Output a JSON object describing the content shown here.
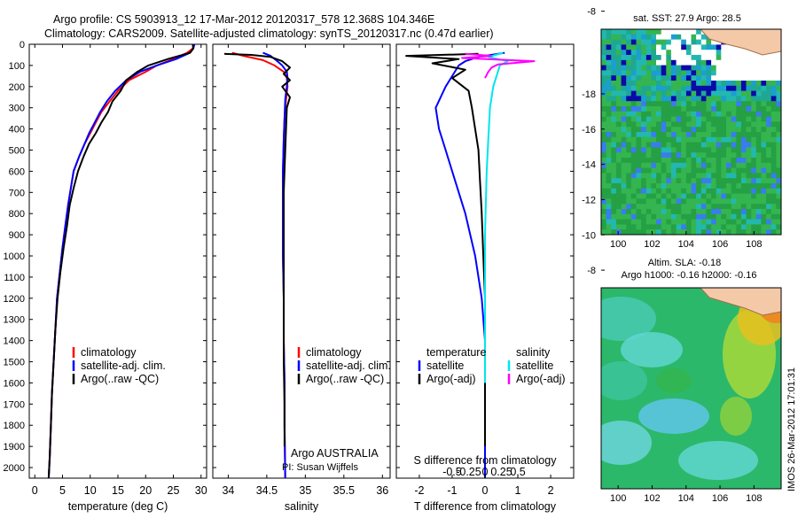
{
  "header": {
    "line1": "Argo profile: CS 5903913_12 17-Mar-2012 20120317_578 12.368S 104.346E",
    "line2": "Climatology: CARS2009. Satellite-adjusted climatology: synTS_20120317.nc (0.47d earlier)"
  },
  "colors": {
    "climatology": "#ff0000",
    "satellite": "#0000ff",
    "argo": "#000000",
    "sal_satellite": "#00e5ee",
    "sal_argo": "#ff00ff"
  },
  "depth_axis": {
    "ticks": [
      "0",
      "100",
      "200",
      "300",
      "400",
      "500",
      "600",
      "700",
      "800",
      "900",
      "1000",
      "1100",
      "1200",
      "1300",
      "1400",
      "1500",
      "1600",
      "1700",
      "1800",
      "1900",
      "2000"
    ]
  },
  "chart_data": [
    {
      "type": "line",
      "xlabel": "temperature (deg C)",
      "xlim": [
        -1,
        31
      ],
      "ylim": [
        0,
        2050
      ],
      "y_inverted": true,
      "xticks": [
        "0",
        "5",
        "10",
        "15",
        "20",
        "25",
        "30"
      ],
      "legend": [
        "climatology",
        "satellite-adj. clim.",
        "Argo(..raw -QC)"
      ],
      "series": [
        {
          "name": "climatology",
          "x": [
            28.8,
            28.5,
            27.5,
            25,
            22,
            20,
            17,
            15,
            13.5,
            12,
            11,
            10,
            9,
            8,
            7,
            6.5,
            6,
            5.5,
            5,
            4.5,
            4,
            3.7,
            3.4,
            3.1,
            2.9,
            2.7,
            2.5
          ],
          "y": [
            0,
            20,
            40,
            70,
            100,
            130,
            170,
            220,
            270,
            320,
            370,
            420,
            470,
            530,
            600,
            680,
            760,
            860,
            960,
            1080,
            1200,
            1350,
            1500,
            1650,
            1800,
            1950,
            2050
          ]
        },
        {
          "name": "satellite-adj. clim.",
          "x": [
            28.8,
            28.6,
            28,
            25.5,
            22,
            19,
            16.5,
            14.5,
            13,
            11.8,
            10.8,
            9.8,
            9,
            8,
            7,
            6.5,
            6,
            5.5,
            5,
            4.5,
            4,
            3.7,
            3.4,
            3.1,
            2.9,
            2.7,
            2.5
          ],
          "y": [
            0,
            20,
            40,
            70,
            100,
            130,
            170,
            220,
            270,
            320,
            370,
            420,
            470,
            530,
            600,
            680,
            760,
            860,
            960,
            1080,
            1200,
            1350,
            1500,
            1650,
            1800,
            1950,
            2050
          ]
        },
        {
          "name": "Argo(..raw -QC)",
          "x": [
            28.5,
            28.6,
            28,
            24,
            20.5,
            18.5,
            16.5,
            15.5,
            14,
            13.2,
            12,
            11,
            9.8,
            8.8,
            7.8,
            7,
            6.3,
            5.8,
            5.2,
            4.6,
            4.1,
            3.7,
            3.4,
            3.1,
            2.9,
            2.7,
            2.5
          ],
          "y": [
            0,
            20,
            40,
            70,
            100,
            130,
            170,
            220,
            270,
            320,
            370,
            420,
            470,
            530,
            600,
            680,
            760,
            860,
            960,
            1080,
            1200,
            1350,
            1500,
            1650,
            1800,
            1950,
            2050
          ]
        }
      ]
    },
    {
      "type": "line",
      "xlabel": "salinity",
      "xlim": [
        33.8,
        36.1
      ],
      "ylim": [
        0,
        2050
      ],
      "y_inverted": true,
      "xticks": [
        "34",
        "34.5",
        "35",
        "35.5",
        "36"
      ],
      "legend": [
        "climatology",
        "satellite-adj. clim.",
        "Argo(..raw -QC)"
      ],
      "annotations": [
        "Argo AUSTRALIA",
        "PI: Susan Wijffels"
      ],
      "series": [
        {
          "name": "climatology",
          "x": [
            34.05,
            34.2,
            34.45,
            34.6,
            34.72,
            34.76,
            34.77,
            34.75,
            34.73,
            34.72,
            34.71,
            34.71,
            34.71,
            34.72,
            34.72,
            34.73,
            34.73,
            34.74
          ],
          "y": [
            40,
            55,
            75,
            100,
            130,
            160,
            200,
            260,
            350,
            450,
            600,
            800,
            1000,
            1200,
            1400,
            1600,
            1800,
            2050
          ]
        },
        {
          "name": "satellite-adj. clim.",
          "x": [
            34.45,
            34.55,
            34.62,
            34.7,
            34.76,
            34.77,
            34.76,
            34.74,
            34.73,
            34.72,
            34.71,
            34.71,
            34.71,
            34.72,
            34.72,
            34.73,
            34.73,
            34.74
          ],
          "y": [
            40,
            55,
            75,
            100,
            130,
            160,
            200,
            260,
            350,
            450,
            600,
            800,
            1000,
            1200,
            1400,
            1600,
            1800,
            2050
          ]
        },
        {
          "name": "Argo(..raw -QC)",
          "x": [
            33.95,
            34.3,
            34.55,
            34.7,
            34.8,
            34.72,
            34.8,
            34.7,
            34.8,
            34.76,
            34.75,
            34.74,
            34.72,
            34.72,
            34.72,
            34.72,
            34.72,
            34.73,
            34.73
          ],
          "y": [
            45,
            50,
            60,
            80,
            110,
            140,
            170,
            200,
            250,
            300,
            400,
            500,
            700,
            900,
            1100,
            1300,
            1500,
            1700,
            1900
          ]
        }
      ]
    },
    {
      "type": "line",
      "xlabel": "T difference from climatology",
      "xlabel_top": "S difference from climatology",
      "xlim": [
        -2.7,
        2.7
      ],
      "ylim": [
        0,
        2050
      ],
      "y_inverted": true,
      "xticks": [
        "-2",
        "-1",
        "0",
        "1",
        "2"
      ],
      "xticks_s": [
        "-0.5",
        "-0.25",
        "0",
        "0.25",
        "0.5"
      ],
      "legend": [
        "temperature",
        "satellite",
        "Argo(-adj)",
        "salinity",
        "satellite",
        "Argo(-adj)"
      ],
      "series": [
        {
          "name": "temperature satellite",
          "x": [
            0.6,
            -0.2,
            -0.6,
            -0.8,
            -1.0,
            -1.2,
            -1.5,
            -1.4,
            -1.2,
            -0.9,
            -0.6,
            -0.3,
            -0.1,
            0,
            0,
            0,
            0
          ],
          "y": [
            40,
            60,
            80,
            100,
            150,
            200,
            300,
            400,
            500,
            650,
            800,
            1000,
            1200,
            1400,
            1600,
            1800,
            2050
          ]
        },
        {
          "name": "temperature Argo(-adj)",
          "x": [
            -0.2,
            -2.4,
            -0.8,
            -1.6,
            -0.6,
            -1.0,
            -0.5,
            -0.4,
            -0.3,
            -0.2,
            -0.15,
            -0.1,
            -0.05,
            0,
            0,
            0,
            0
          ],
          "y": [
            45,
            55,
            70,
            90,
            120,
            160,
            220,
            300,
            400,
            500,
            650,
            800,
            1000,
            1200,
            1400,
            1600,
            1900
          ]
        },
        {
          "name": "salinity satellite",
          "x": [
            0.55,
            0.1,
            0.7,
            0.45,
            0.35,
            0.25,
            0.15,
            0.1,
            0.05,
            0,
            0,
            0
          ],
          "y": [
            40,
            60,
            80,
            100,
            150,
            200,
            300,
            450,
            600,
            900,
            1200,
            1600
          ]
        },
        {
          "name": "salinity Argo(-adj)",
          "x": [
            -0.6,
            0.2,
            -0.7,
            1.5,
            0.4,
            0.2,
            0.1,
            0
          ],
          "y": [
            45,
            55,
            65,
            80,
            95,
            110,
            130,
            160
          ]
        }
      ]
    }
  ],
  "maps": {
    "sst": {
      "title": "sat. SST: 27.9 Argo: 28.5"
    },
    "sla": {
      "title_line1": "Altim. SLA: -0.18",
      "title_line2": "Argo h1000: -0.16 h2000: -0.16"
    },
    "lon_ticks": [
      "100",
      "102",
      "104",
      "106",
      "108"
    ],
    "lat_ticks": [
      "-8",
      "-10",
      "-12",
      "-14",
      "-16",
      "-18"
    ],
    "float_lon": 104.346,
    "float_lat": -12.368
  },
  "footer": {
    "credit": "IMOS 26-Mar-2012 17:01:31"
  }
}
